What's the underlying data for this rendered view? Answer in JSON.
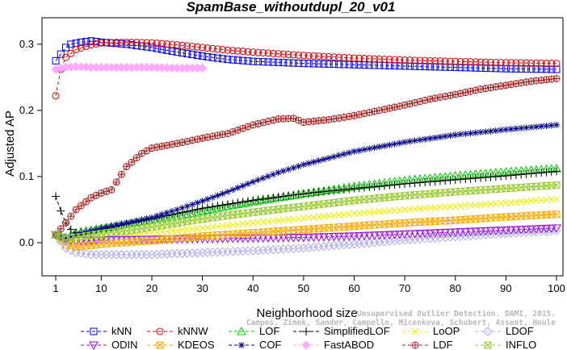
{
  "chart_data": {
    "type": "line",
    "title": "SpamBase_withoutdupl_20_v01",
    "xlabel": "Neighborhood size",
    "ylabel": "Adjusted AP",
    "xlim": [
      1,
      100
    ],
    "ylim": [
      -0.05,
      0.34
    ],
    "x_ticks": [
      1,
      10,
      20,
      30,
      40,
      50,
      60,
      70,
      80,
      90,
      100
    ],
    "y_ticks": [
      0.0,
      0.1,
      0.2,
      0.3
    ],
    "y_tick_labels": [
      "0.0",
      "0.1",
      "0.2",
      "0.3"
    ],
    "grid": false,
    "legend_position": "bottom",
    "annotation": [
      "Campos, Zimek, Sander, Campello, Micenkova, Schubert, Assent, Houle",
      "Unsupervised Outlier Detection. DAMI, 2015."
    ],
    "series": [
      {
        "name": "kNN",
        "color": "#0000ee",
        "marker": "square",
        "dashed": true,
        "points": [
          [
            1,
            0.275
          ],
          [
            2,
            0.285
          ],
          [
            3,
            0.295
          ],
          [
            4,
            0.3
          ],
          [
            6,
            0.303
          ],
          [
            8,
            0.305
          ],
          [
            10,
            0.303
          ],
          [
            15,
            0.3
          ],
          [
            20,
            0.295
          ],
          [
            25,
            0.288
          ],
          [
            30,
            0.282
          ],
          [
            35,
            0.277
          ],
          [
            40,
            0.274
          ],
          [
            50,
            0.271
          ],
          [
            60,
            0.269
          ],
          [
            70,
            0.267
          ],
          [
            80,
            0.265
          ],
          [
            90,
            0.263
          ],
          [
            100,
            0.262
          ]
        ]
      },
      {
        "name": "kNNW",
        "color": "#dd0000",
        "marker": "circle",
        "dashed": true,
        "points": [
          [
            1,
            0.222
          ],
          [
            2,
            0.262
          ],
          [
            3,
            0.28
          ],
          [
            5,
            0.292
          ],
          [
            8,
            0.299
          ],
          [
            10,
            0.302
          ],
          [
            15,
            0.303
          ],
          [
            20,
            0.302
          ],
          [
            25,
            0.299
          ],
          [
            30,
            0.295
          ],
          [
            35,
            0.291
          ],
          [
            40,
            0.288
          ],
          [
            50,
            0.283
          ],
          [
            60,
            0.279
          ],
          [
            70,
            0.276
          ],
          [
            80,
            0.274
          ],
          [
            90,
            0.272
          ],
          [
            100,
            0.271
          ]
        ]
      },
      {
        "name": "LOF",
        "color": "#00cc00",
        "marker": "triangle",
        "dashed": true,
        "points": [
          [
            1,
            0.012
          ],
          [
            3,
            0.008
          ],
          [
            5,
            0.015
          ],
          [
            10,
            0.022
          ],
          [
            15,
            0.028
          ],
          [
            20,
            0.034
          ],
          [
            25,
            0.04
          ],
          [
            30,
            0.048
          ],
          [
            40,
            0.062
          ],
          [
            50,
            0.074
          ],
          [
            60,
            0.085
          ],
          [
            70,
            0.094
          ],
          [
            80,
            0.101
          ],
          [
            90,
            0.107
          ],
          [
            100,
            0.112
          ]
        ]
      },
      {
        "name": "SimplifiedLOF",
        "color": "#000000",
        "marker": "plus",
        "dashed": true,
        "points": [
          [
            1,
            0.07
          ],
          [
            2,
            0.048
          ],
          [
            3,
            0.03
          ],
          [
            4,
            0.02
          ],
          [
            5,
            0.015
          ],
          [
            8,
            0.016
          ],
          [
            10,
            0.02
          ],
          [
            15,
            0.028
          ],
          [
            20,
            0.036
          ],
          [
            25,
            0.044
          ],
          [
            30,
            0.052
          ],
          [
            40,
            0.064
          ],
          [
            50,
            0.074
          ],
          [
            60,
            0.082
          ],
          [
            70,
            0.089
          ],
          [
            80,
            0.095
          ],
          [
            90,
            0.101
          ],
          [
            100,
            0.108
          ]
        ]
      },
      {
        "name": "LoOP",
        "color": "#eeee00",
        "marker": "x",
        "dashed": true,
        "points": [
          [
            1,
            0.012
          ],
          [
            3,
            0.003
          ],
          [
            5,
            0.004
          ],
          [
            10,
            0.008
          ],
          [
            20,
            0.015
          ],
          [
            30,
            0.022
          ],
          [
            40,
            0.03
          ],
          [
            50,
            0.037
          ],
          [
            60,
            0.044
          ],
          [
            70,
            0.05
          ],
          [
            80,
            0.055
          ],
          [
            90,
            0.06
          ],
          [
            100,
            0.066
          ]
        ]
      },
      {
        "name": "LDOF",
        "color": "#aaaaee",
        "marker": "diamond",
        "dashed": true,
        "points": [
          [
            1,
            0.012
          ],
          [
            3,
            -0.008
          ],
          [
            5,
            -0.015
          ],
          [
            8,
            -0.018
          ],
          [
            10,
            -0.018
          ],
          [
            20,
            -0.018
          ],
          [
            30,
            -0.015
          ],
          [
            40,
            -0.012
          ],
          [
            50,
            -0.008
          ],
          [
            60,
            -0.002
          ],
          [
            70,
            0.004
          ],
          [
            80,
            0.009
          ],
          [
            90,
            0.014
          ],
          [
            100,
            0.018
          ]
        ]
      },
      {
        "name": "ODIN",
        "color": "#9900ee",
        "marker": "triangle-down",
        "dashed": true,
        "points": [
          [
            1,
            0.012
          ],
          [
            3,
            0.004
          ],
          [
            5,
            0.003
          ],
          [
            10,
            0.004
          ],
          [
            20,
            0.005
          ],
          [
            30,
            0.006
          ],
          [
            40,
            0.007
          ],
          [
            50,
            0.008
          ],
          [
            60,
            0.01
          ],
          [
            70,
            0.013
          ],
          [
            80,
            0.016
          ],
          [
            90,
            0.019
          ],
          [
            100,
            0.022
          ]
        ]
      },
      {
        "name": "KDEOS",
        "color": "#ffaa00",
        "marker": "square-x",
        "dashed": true,
        "points": [
          [
            1,
            0.012
          ],
          [
            3,
            -0.003
          ],
          [
            5,
            -0.006
          ],
          [
            8,
            -0.004
          ],
          [
            10,
            -0.002
          ],
          [
            20,
            0.003
          ],
          [
            30,
            0.01
          ],
          [
            40,
            0.015
          ],
          [
            50,
            0.02
          ],
          [
            60,
            0.025
          ],
          [
            70,
            0.03
          ],
          [
            80,
            0.034
          ],
          [
            90,
            0.039
          ],
          [
            100,
            0.043
          ]
        ]
      },
      {
        "name": "COF",
        "color": "#00008b",
        "marker": "asterisk",
        "dashed": true,
        "points": [
          [
            1,
            0.012
          ],
          [
            3,
            0.006
          ],
          [
            5,
            0.012
          ],
          [
            10,
            0.022
          ],
          [
            15,
            0.03
          ],
          [
            20,
            0.038
          ],
          [
            25,
            0.05
          ],
          [
            30,
            0.063
          ],
          [
            35,
            0.077
          ],
          [
            40,
            0.092
          ],
          [
            45,
            0.106
          ],
          [
            50,
            0.118
          ],
          [
            60,
            0.138
          ],
          [
            70,
            0.152
          ],
          [
            80,
            0.163
          ],
          [
            90,
            0.171
          ],
          [
            100,
            0.178
          ]
        ]
      },
      {
        "name": "FastABOD",
        "color": "#ffaaff",
        "marker": "diamond-filled",
        "dashed": true,
        "points": [
          [
            1,
            0.262
          ],
          [
            3,
            0.265
          ],
          [
            5,
            0.266
          ],
          [
            8,
            0.265
          ],
          [
            10,
            0.265
          ],
          [
            15,
            0.265
          ],
          [
            20,
            0.265
          ],
          [
            25,
            0.264
          ],
          [
            30,
            0.264
          ]
        ]
      },
      {
        "name": "LDF",
        "color": "#aa2222",
        "marker": "circle-plus",
        "dashed": true,
        "points": [
          [
            1,
            0.012
          ],
          [
            3,
            0.03
          ],
          [
            5,
            0.05
          ],
          [
            8,
            0.068
          ],
          [
            10,
            0.075
          ],
          [
            12,
            0.08
          ],
          [
            15,
            0.115
          ],
          [
            18,
            0.135
          ],
          [
            20,
            0.143
          ],
          [
            25,
            0.15
          ],
          [
            30,
            0.158
          ],
          [
            35,
            0.165
          ],
          [
            40,
            0.178
          ],
          [
            45,
            0.187
          ],
          [
            48,
            0.188
          ],
          [
            50,
            0.182
          ],
          [
            55,
            0.186
          ],
          [
            60,
            0.192
          ],
          [
            65,
            0.2
          ],
          [
            70,
            0.208
          ],
          [
            75,
            0.217
          ],
          [
            80,
            0.224
          ],
          [
            85,
            0.232
          ],
          [
            90,
            0.238
          ],
          [
            95,
            0.244
          ],
          [
            100,
            0.248
          ]
        ]
      },
      {
        "name": "INFLO",
        "color": "#99cc33",
        "marker": "square-x",
        "dashed": true,
        "points": [
          [
            1,
            0.012
          ],
          [
            3,
            0.004
          ],
          [
            5,
            0.008
          ],
          [
            10,
            0.014
          ],
          [
            15,
            0.018
          ],
          [
            20,
            0.024
          ],
          [
            30,
            0.036
          ],
          [
            40,
            0.046
          ],
          [
            50,
            0.055
          ],
          [
            60,
            0.064
          ],
          [
            70,
            0.071
          ],
          [
            80,
            0.077
          ],
          [
            90,
            0.082
          ],
          [
            100,
            0.087
          ]
        ]
      }
    ]
  }
}
